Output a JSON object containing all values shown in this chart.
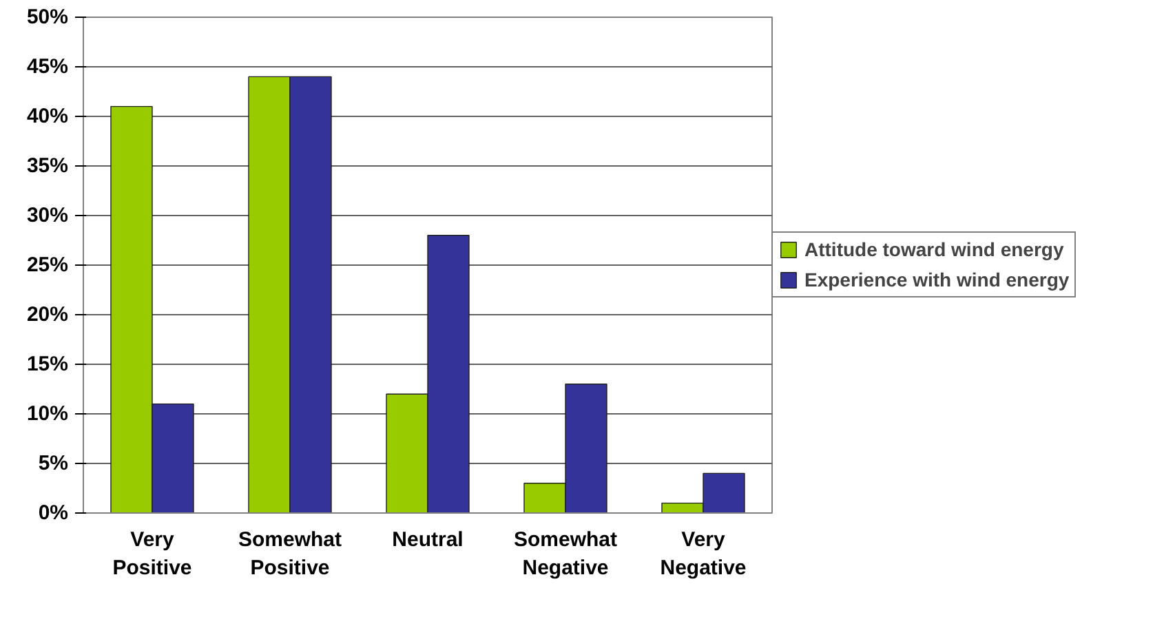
{
  "chart_data": {
    "type": "bar",
    "categories": [
      "Very Positive",
      "Somewhat Positive",
      "Neutral",
      "Somewhat Negative",
      "Very Negative"
    ],
    "series": [
      {
        "name": "Attitude toward wind energy",
        "color": "#99cc00",
        "values": [
          41,
          44,
          12,
          3,
          1
        ]
      },
      {
        "name": "Experience with wind energy",
        "color": "#333399",
        "values": [
          11,
          44,
          28,
          13,
          4
        ]
      }
    ],
    "ylim": [
      0,
      50
    ],
    "yticks": [
      {
        "value": 0,
        "label": "0%"
      },
      {
        "value": 5,
        "label": "5%"
      },
      {
        "value": 10,
        "label": "10%"
      },
      {
        "value": 15,
        "label": "15%"
      },
      {
        "value": 20,
        "label": "20%"
      },
      {
        "value": 25,
        "label": "25%"
      },
      {
        "value": 30,
        "label": "30%"
      },
      {
        "value": 35,
        "label": "35%"
      },
      {
        "value": 40,
        "label": "40%"
      },
      {
        "value": 45,
        "label": "45%"
      },
      {
        "value": 50,
        "label": "50%"
      }
    ],
    "grid": "y",
    "legend": "right"
  }
}
